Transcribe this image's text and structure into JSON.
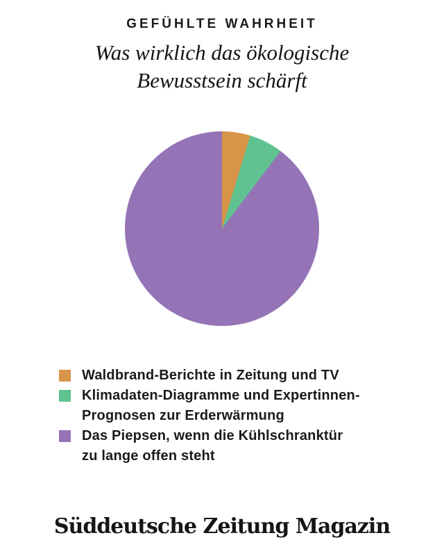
{
  "header": {
    "kicker": "GEFÜHLTE WAHRHEIT",
    "title": "Was wirklich das ökologische\nBewusstsein schärft"
  },
  "chart_data": {
    "type": "pie",
    "title": "Gefühlte Wahrheit",
    "subtitle": "Was wirklich das ökologische Bewusstsein schärft",
    "categories": [
      "Waldbrand-Berichte in Zeitung und TV",
      "Klimadaten-Diagramme und Expertinnen-Prognosen zur Erderwärmung",
      "Das Piepsen, wenn die Kühlschranktür zu lange offen steht"
    ],
    "values": [
      4.7,
      5.6,
      89.7
    ],
    "value_unit": "percent-estimated-from-angles",
    "colors": [
      "#D8954A",
      "#5FC290",
      "#9474B6"
    ],
    "start_angle_deg": 0,
    "direction": "clockwise",
    "data_labels": false,
    "legend_position": "below-left"
  },
  "legend": {
    "items": [
      {
        "label": "Waldbrand-Berichte in Zeitung und TV",
        "color": "#D8954A"
      },
      {
        "label": "Klimadaten-Diagramme und Expertinnen-\nPrognosen zur Erderwärmung",
        "color": "#5FC290"
      },
      {
        "label": "Das Piepsen, wenn die Kühlschranktür\nzu lange offen steht",
        "color": "#9474B6"
      }
    ]
  },
  "footer": {
    "logo_text": "Süddeutsche Zeitung Magazin"
  },
  "colors": {
    "background": "#FFFFFF",
    "text": "#1A1A1A"
  }
}
